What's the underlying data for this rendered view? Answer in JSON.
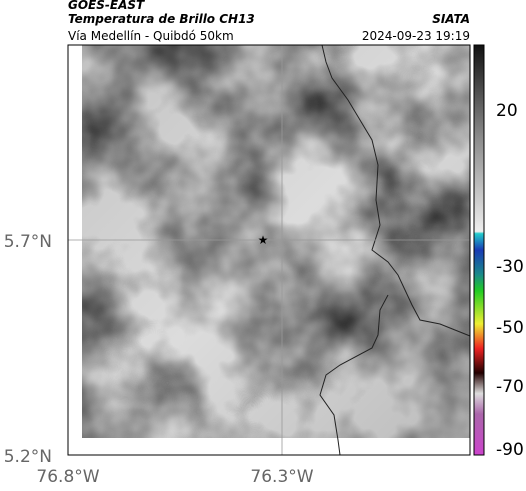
{
  "header": {
    "source": "GOES-EAST",
    "title": "Temperatura de Brillo CH13",
    "brand": "SIATA",
    "subtitle": "Vía Medellín - Quibdó 50km",
    "timestamp": "2024-09-23 19:19"
  },
  "map": {
    "lat_labels": [
      "5.7°N",
      "5.2°N"
    ],
    "lon_labels": [
      "76.8°W",
      "76.3°W"
    ]
  },
  "colorbar": {
    "ticks": [
      "20",
      "-30",
      "-50",
      "-70",
      "-90"
    ]
  }
}
